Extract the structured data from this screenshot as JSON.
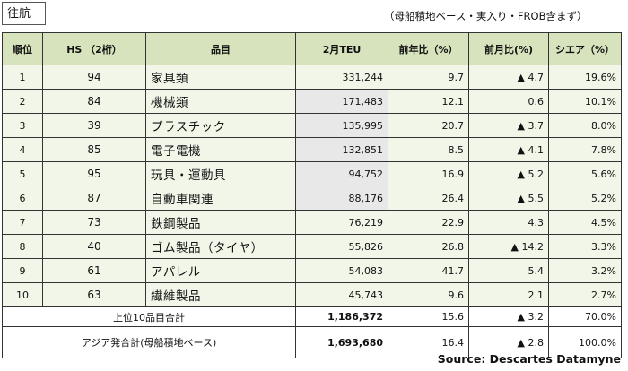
{
  "tag": "往航",
  "note": "（母船積地ベース・実入り・FROB含まず）",
  "headers": [
    "順位",
    "HS （2桁）",
    "品目",
    "2月TEU",
    "前年比（%）",
    "前月比(%)",
    "シエア（%）"
  ],
  "rows": [
    {
      "rank": "1",
      "hs": "94",
      "item": "家具類",
      "teu": "331,244",
      "yoy": "9.7",
      "mom": "▲ 4.7",
      "share": "19.6%"
    },
    {
      "rank": "2",
      "hs": "84",
      "item": "機械類",
      "teu": "171,483",
      "yoy": "12.1",
      "mom": "0.6",
      "share": "10.1%"
    },
    {
      "rank": "3",
      "hs": "39",
      "item": "プラスチック",
      "teu": "135,995",
      "yoy": "20.7",
      "mom": "▲ 3.7",
      "share": "8.0%"
    },
    {
      "rank": "4",
      "hs": "85",
      "item": "電子電機",
      "teu": "132,851",
      "yoy": "8.5",
      "mom": "▲ 4.1",
      "share": "7.8%"
    },
    {
      "rank": "5",
      "hs": "95",
      "item": "玩具・運動具",
      "teu": "94,752",
      "yoy": "16.9",
      "mom": "▲ 5.2",
      "share": "5.6%"
    },
    {
      "rank": "6",
      "hs": "87",
      "item": "自動車関連",
      "teu": "88,176",
      "yoy": "26.4",
      "mom": "▲ 5.5",
      "share": "5.2%"
    },
    {
      "rank": "7",
      "hs": "73",
      "item": "鉄鋼製品",
      "teu": "76,219",
      "yoy": "22.9",
      "mom": "4.3",
      "share": "4.5%"
    },
    {
      "rank": "8",
      "hs": "40",
      "item": "ゴム製品（タイヤ）",
      "teu": "55,826",
      "yoy": "26.8",
      "mom": "▲ 14.2",
      "share": "3.3%"
    },
    {
      "rank": "9",
      "hs": "61",
      "item": "アパレル",
      "teu": "54,083",
      "yoy": "41.7",
      "mom": "5.4",
      "share": "3.2%"
    },
    {
      "rank": "10",
      "hs": "63",
      "item": "繊維製品",
      "teu": "45,743",
      "yoy": "9.6",
      "mom": "2.1",
      "share": "2.7%"
    }
  ],
  "top10": {
    "label": "上位10品目合計",
    "teu": "1,186,372",
    "yoy": "15.6",
    "mom": "▲ 3.2",
    "share": "70.0%"
  },
  "asia": {
    "label": "アジア発合計(母船積地ベース)",
    "teu": "1,693,680",
    "yoy": "16.4",
    "mom": "▲ 2.8",
    "share": "100.0%"
  },
  "source": "Source: Descartes Datamyne"
}
